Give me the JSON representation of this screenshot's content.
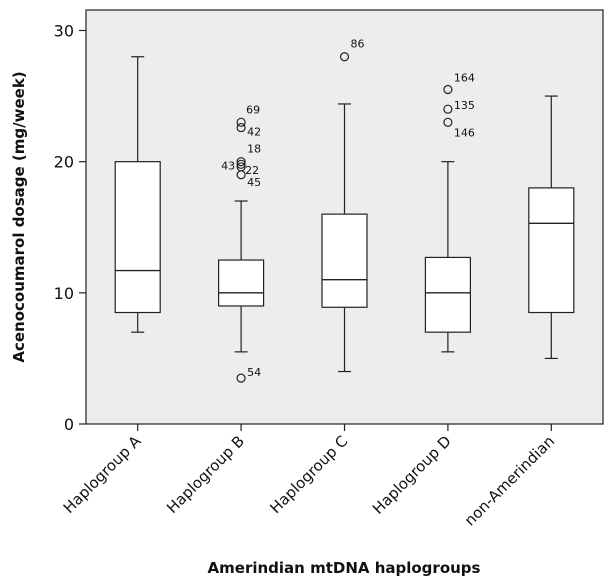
{
  "chart_data": {
    "type": "box",
    "title": "",
    "xlabel": "Amerindian mtDNA haplogroups",
    "ylabel": "Acenocoumarol dosage (mg/week)",
    "ylim": [
      0,
      30
    ],
    "yticks": [
      0,
      10,
      20,
      30
    ],
    "grid": false,
    "plot_background": "#ededed",
    "box_color": "#ffffff",
    "line_color": "#222222",
    "categories": [
      "Haplogroup A",
      "Haplogroup B",
      "Haplogroup C",
      "Haplogroup D",
      "non-Amerindian"
    ],
    "boxes": [
      {
        "category": "Haplogroup A",
        "whisker_low": 7,
        "q1": 8.5,
        "median": 11.7,
        "q3": 20,
        "whisker_high": 28,
        "outliers": []
      },
      {
        "category": "Haplogroup B",
        "whisker_low": 5.5,
        "q1": 9,
        "median": 10,
        "q3": 12.5,
        "whisker_high": 17,
        "outliers": [
          {
            "value": 23,
            "label": "69"
          },
          {
            "value": 22.6,
            "label": "42"
          },
          {
            "value": 20,
            "label": "18"
          },
          {
            "value": 19.8,
            "label": "43"
          },
          {
            "value": 19.6,
            "label": "22"
          },
          {
            "value": 19,
            "label": "45"
          },
          {
            "value": 3.5,
            "label": "54"
          }
        ]
      },
      {
        "category": "Haplogroup C",
        "whisker_low": 4,
        "q1": 8.9,
        "median": 11,
        "q3": 16,
        "whisker_high": 24.4,
        "outliers": [
          {
            "value": 28,
            "label": "86"
          }
        ]
      },
      {
        "category": "Haplogroup D",
        "whisker_low": 5.5,
        "q1": 7,
        "median": 10,
        "q3": 12.7,
        "whisker_high": 20,
        "outliers": [
          {
            "value": 25.5,
            "label": "164"
          },
          {
            "value": 24,
            "label": "135"
          },
          {
            "value": 23,
            "label": "146"
          }
        ]
      },
      {
        "category": "non-Amerindian",
        "whisker_low": 5,
        "q1": 8.5,
        "median": 15.3,
        "q3": 18,
        "whisker_high": 25,
        "outliers": []
      }
    ]
  }
}
